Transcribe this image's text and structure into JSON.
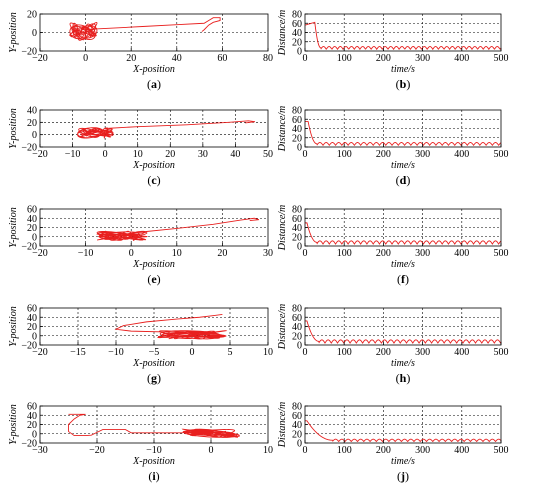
{
  "chart_data": [
    {
      "id": "a",
      "type": "line",
      "label": "a",
      "xlabel": "X-position",
      "ylabel": "Y-position",
      "xlim": [
        -20,
        80
      ],
      "ylim": [
        -20,
        20
      ],
      "xticks": [
        -20,
        0,
        20,
        40,
        60,
        80
      ],
      "xtick_labels": [
        "−20",
        "0",
        "20",
        "40",
        "60",
        "80"
      ],
      "yticks": [
        -20,
        0,
        20
      ],
      "ytick_labels": [
        "−20",
        "0",
        "20"
      ],
      "grid": true,
      "trajectory": {
        "lead_path": [
          [
            -2,
            3
          ],
          [
            10,
            4.5
          ],
          [
            25,
            6.5
          ],
          [
            40,
            8.5
          ],
          [
            52,
            10
          ],
          [
            54,
            13
          ],
          [
            56,
            16
          ],
          [
            59,
            16
          ],
          [
            59,
            13
          ],
          [
            56,
            11
          ],
          [
            54,
            8
          ],
          [
            52,
            3
          ],
          [
            51,
            1
          ]
        ],
        "cluster": {
          "center": [
            -1,
            1
          ],
          "rx": 6,
          "ry": 12
        }
      }
    },
    {
      "id": "b",
      "type": "line",
      "label": "b",
      "xlabel": "time/s",
      "ylabel": "Distance/m",
      "xlim": [
        0,
        500
      ],
      "ylim": [
        0,
        80
      ],
      "xticks": [
        0,
        100,
        200,
        300,
        400,
        500
      ],
      "xtick_labels": [
        "0",
        "100",
        "200",
        "300",
        "400",
        "500"
      ],
      "yticks": [
        0,
        20,
        40,
        60,
        80
      ],
      "ytick_labels": [
        "0",
        "20",
        "40",
        "60",
        "80"
      ],
      "grid": true,
      "series": {
        "start_value": 56,
        "initial_peak": 62,
        "peak_time": 25,
        "settle_time": 40,
        "oscillation_mid": 7,
        "oscillation_amplitude": 6,
        "oscillation_period": 14.3
      }
    },
    {
      "id": "c",
      "type": "line",
      "label": "c",
      "xlabel": "X-position",
      "ylabel": "Y-position",
      "xlim": [
        -20,
        50
      ],
      "ylim": [
        -20,
        40
      ],
      "xticks": [
        -20,
        -10,
        0,
        10,
        20,
        30,
        40,
        50
      ],
      "xtick_labels": [
        "−20",
        "−10",
        "0",
        "10",
        "20",
        "30",
        "40",
        "50"
      ],
      "yticks": [
        -20,
        0,
        20,
        40
      ],
      "ytick_labels": [
        "−20",
        "0",
        "20",
        "40"
      ],
      "grid": true,
      "trajectory": {
        "lead_path": [
          [
            0,
            10
          ],
          [
            10,
            13
          ],
          [
            25,
            16
          ],
          [
            38,
            20
          ],
          [
            44,
            22.5
          ],
          [
            46,
            21
          ],
          [
            43,
            19
          ]
        ],
        "cluster": {
          "center": [
            -3,
            3
          ],
          "rx": 5.5,
          "ry": 9
        }
      }
    },
    {
      "id": "d",
      "type": "line",
      "label": "d",
      "xlabel": "time/s",
      "ylabel": "Distance/m",
      "xlim": [
        0,
        500
      ],
      "ylim": [
        0,
        80
      ],
      "xticks": [
        0,
        100,
        200,
        300,
        400,
        500
      ],
      "xtick_labels": [
        "0",
        "100",
        "200",
        "300",
        "400",
        "500"
      ],
      "yticks": [
        0,
        20,
        40,
        60,
        80
      ],
      "ytick_labels": [
        "0",
        "20",
        "40",
        "60",
        "80"
      ],
      "grid": true,
      "series": {
        "start_value": 55,
        "initial_peak": 55,
        "peak_time": 8,
        "settle_time": 30,
        "oscillation_mid": 7,
        "oscillation_amplitude": 6,
        "oscillation_period": 16
      }
    },
    {
      "id": "e",
      "type": "line",
      "label": "e",
      "xlabel": "X-position",
      "ylabel": "Y-position",
      "xlim": [
        -20,
        30
      ],
      "ylim": [
        -20,
        60
      ],
      "xticks": [
        -20,
        -10,
        0,
        10,
        20,
        30
      ],
      "xtick_labels": [
        "−20",
        "−10",
        "0",
        "10",
        "20",
        "30"
      ],
      "yticks": [
        -20,
        0,
        20,
        40,
        60
      ],
      "ytick_labels": [
        "−20",
        "0",
        "20",
        "40",
        "60"
      ],
      "grid": true,
      "trajectory": {
        "lead_path": [
          [
            2,
            10
          ],
          [
            10,
            18
          ],
          [
            18,
            27
          ],
          [
            24,
            36
          ],
          [
            27,
            40
          ],
          [
            28,
            37
          ],
          [
            26,
            35
          ]
        ],
        "cluster": {
          "center": [
            -2,
            2
          ],
          "rx": 5.5,
          "ry": 10
        }
      }
    },
    {
      "id": "f",
      "type": "line",
      "label": "f",
      "xlabel": "time/s",
      "ylabel": "Distance/m",
      "xlim": [
        0,
        500
      ],
      "ylim": [
        0,
        80
      ],
      "xticks": [
        0,
        100,
        200,
        300,
        400,
        500
      ],
      "xtick_labels": [
        "0",
        "100",
        "200",
        "300",
        "400",
        "500"
      ],
      "yticks": [
        0,
        20,
        40,
        60,
        80
      ],
      "ytick_labels": [
        "0",
        "20",
        "40",
        "60",
        "80"
      ],
      "grid": true,
      "series": {
        "start_value": 50,
        "initial_peak": 50,
        "peak_time": 5,
        "settle_time": 30,
        "oscillation_mid": 8,
        "oscillation_amplitude": 7,
        "oscillation_period": 16
      }
    },
    {
      "id": "g",
      "type": "line",
      "label": "g",
      "xlabel": "X-position",
      "ylabel": "Y-position",
      "xlim": [
        -20,
        10
      ],
      "ylim": [
        -20,
        60
      ],
      "xticks": [
        -20,
        -15,
        -10,
        -5,
        0,
        5,
        10
      ],
      "xtick_labels": [
        "−20",
        "−15",
        "−10",
        "−5",
        "0",
        "5",
        "10"
      ],
      "yticks": [
        -20,
        0,
        20,
        40,
        60
      ],
      "ytick_labels": [
        "−20",
        "0",
        "20",
        "40",
        "60"
      ],
      "grid": true,
      "trajectory": {
        "lead_path": [
          [
            -3,
            8
          ],
          [
            -8,
            10
          ],
          [
            -10,
            14
          ],
          [
            -9,
            22
          ],
          [
            -6,
            30
          ],
          [
            -2,
            36
          ],
          [
            1,
            40
          ],
          [
            3,
            44
          ],
          [
            4,
            46
          ]
        ],
        "cluster": {
          "center": [
            0,
            2
          ],
          "rx": 4.5,
          "ry": 9
        }
      }
    },
    {
      "id": "h",
      "type": "line",
      "label": "h",
      "xlabel": "time/s",
      "ylabel": "Distance/m",
      "xlim": [
        0,
        500
      ],
      "ylim": [
        0,
        80
      ],
      "xticks": [
        0,
        100,
        200,
        300,
        400,
        500
      ],
      "xtick_labels": [
        "0",
        "100",
        "200",
        "300",
        "400",
        "500"
      ],
      "yticks": [
        0,
        20,
        40,
        60,
        80
      ],
      "ytick_labels": [
        "0",
        "20",
        "40",
        "60",
        "80"
      ],
      "grid": true,
      "series": {
        "start_value": 52,
        "initial_peak": 52,
        "peak_time": 5,
        "settle_time": 35,
        "oscillation_mid": 8,
        "oscillation_amplitude": 7,
        "oscillation_period": 16
      }
    },
    {
      "id": "i",
      "type": "line",
      "label": "i",
      "xlabel": "X-position",
      "ylabel": "Y-position",
      "xlim": [
        -30,
        10
      ],
      "ylim": [
        -20,
        60
      ],
      "xticks": [
        -30,
        -20,
        -10,
        0,
        10
      ],
      "xtick_labels": [
        "−30",
        "−20",
        "−10",
        "0",
        "10"
      ],
      "yticks": [
        -20,
        0,
        20,
        40,
        60
      ],
      "ytick_labels": [
        "−20",
        "0",
        "20",
        "40",
        "60"
      ],
      "grid": true,
      "trajectory": {
        "lead_path": [
          [
            -5,
            2
          ],
          [
            -14,
            2
          ],
          [
            -15,
            9
          ],
          [
            -19,
            9
          ],
          [
            -20,
            3
          ],
          [
            -21,
            -3
          ],
          [
            -22,
            -4
          ],
          [
            -24,
            -4
          ],
          [
            -25,
            5
          ],
          [
            -25,
            20
          ],
          [
            -24,
            32
          ],
          [
            -23,
            40
          ],
          [
            -22,
            42
          ],
          [
            -25,
            42
          ]
        ],
        "cluster": {
          "center": [
            0,
            1
          ],
          "rx": 5,
          "ry": 9
        }
      }
    },
    {
      "id": "j",
      "type": "line",
      "label": "j",
      "xlabel": "time/s",
      "ylabel": "Distance/m",
      "xlim": [
        0,
        500
      ],
      "ylim": [
        0,
        80
      ],
      "xticks": [
        0,
        100,
        200,
        300,
        400,
        500
      ],
      "xtick_labels": [
        "0",
        "100",
        "200",
        "300",
        "400",
        "500"
      ],
      "yticks": [
        0,
        20,
        40,
        60,
        80
      ],
      "ytick_labels": [
        "0",
        "20",
        "40",
        "60",
        "80"
      ],
      "grid": true,
      "series": {
        "start_value": 48,
        "initial_peak": 48,
        "peak_time": 5,
        "settle_time": 70,
        "oscillation_mid": 6,
        "oscillation_amplitude": 5,
        "oscillation_period": 16
      }
    }
  ],
  "colors": {
    "line": "#e8201f",
    "axis": "#000000",
    "grid": "#000000",
    "background": "#ffffff"
  }
}
